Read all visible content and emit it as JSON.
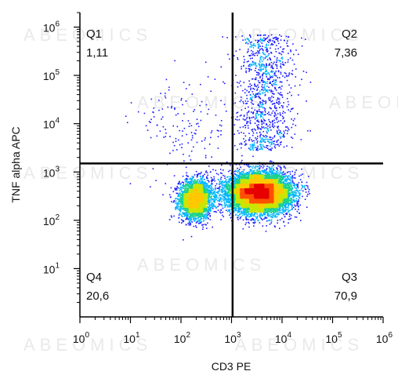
{
  "chart_data": {
    "type": "scatter",
    "subtype": "flow-cytometry-density-dot-plot",
    "title": "",
    "xlabel": "CD3 PE",
    "ylabel": "TNF alpha APC",
    "x_scale": "log",
    "y_scale": "log",
    "xlim": [
      1,
      1000000
    ],
    "ylim": [
      1,
      2000000
    ],
    "x_ticks": [
      {
        "base": "10",
        "exp": "0"
      },
      {
        "base": "10",
        "exp": "1"
      },
      {
        "base": "10",
        "exp": "2"
      },
      {
        "base": "10",
        "exp": "3"
      },
      {
        "base": "10",
        "exp": "4"
      },
      {
        "base": "10",
        "exp": "5"
      },
      {
        "base": "10",
        "exp": "6"
      }
    ],
    "y_ticks": [
      {
        "base": "10",
        "exp": "1"
      },
      {
        "base": "10",
        "exp": "2"
      },
      {
        "base": "10",
        "exp": "3"
      },
      {
        "base": "10",
        "exp": "4"
      },
      {
        "base": "10",
        "exp": "5"
      },
      {
        "base": "10",
        "exp": "6"
      }
    ],
    "gate": {
      "x": 1050,
      "y": 1500
    },
    "quadrants": [
      {
        "name": "Q1",
        "value": "1,11",
        "position": "top-left"
      },
      {
        "name": "Q2",
        "value": "7,36",
        "position": "top-right"
      },
      {
        "name": "Q3",
        "value": "70,9",
        "position": "bottom-right"
      },
      {
        "name": "Q4",
        "value": "20,6",
        "position": "bottom-left"
      }
    ],
    "populations": [
      {
        "center_x": 190,
        "center_y": 280,
        "share": 0.206
      },
      {
        "center_x": 3500,
        "center_y": 380,
        "share": 0.709
      },
      {
        "center_x": 4500,
        "center_y": 20000,
        "share": 0.0736
      },
      {
        "center_x": 120,
        "center_y": 8000,
        "share": 0.0111
      }
    ],
    "color_scale": [
      "#1a1aff",
      "#00b4ff",
      "#19d28c",
      "#c8e600",
      "#ffc800",
      "#ff5000",
      "#e60000"
    ],
    "grid": false,
    "legend": "none"
  },
  "watermark": "ABEOMICS"
}
